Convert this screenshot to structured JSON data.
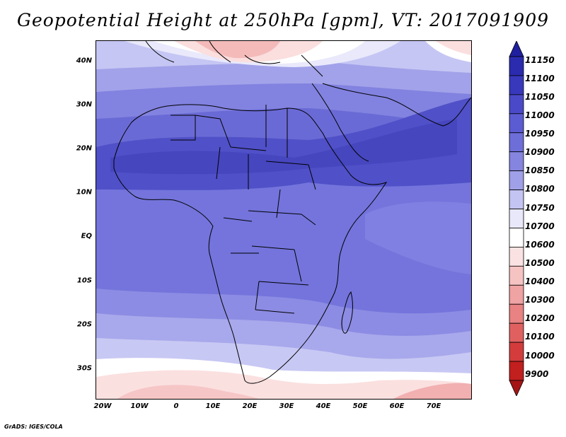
{
  "title": "Geopotential Height at 250hPa [gpm], VT: 2017091909",
  "credit": "GrADS: IGES/COLA",
  "x_axis_labels": [
    "20W",
    "10W",
    "0",
    "10E",
    "20E",
    "30E",
    "40E",
    "50E",
    "60E",
    "70E"
  ],
  "y_axis_labels": [
    "40N",
    "30N",
    "20N",
    "10N",
    "EQ",
    "10S",
    "20S",
    "30S"
  ],
  "colorbar": {
    "labels": [
      "11150",
      "11100",
      "11050",
      "11000",
      "10950",
      "10900",
      "10850",
      "10800",
      "10750",
      "10700",
      "10600",
      "10500",
      "10400",
      "10300",
      "10200",
      "10100",
      "10000",
      "9900"
    ],
    "colors": [
      "#1f1fa0",
      "#2b2bb0",
      "#3838bd",
      "#4a4ac8",
      "#5c5cd2",
      "#6e6ed9",
      "#8585e0",
      "#a0a0e8",
      "#c4c4f2",
      "#e8e8fa",
      "#ffffff",
      "#fbe2e2",
      "#f6c3c3",
      "#f0a3a3",
      "#e98282",
      "#e06060",
      "#d43c3c",
      "#c21f1f",
      "#a51515"
    ]
  }
}
